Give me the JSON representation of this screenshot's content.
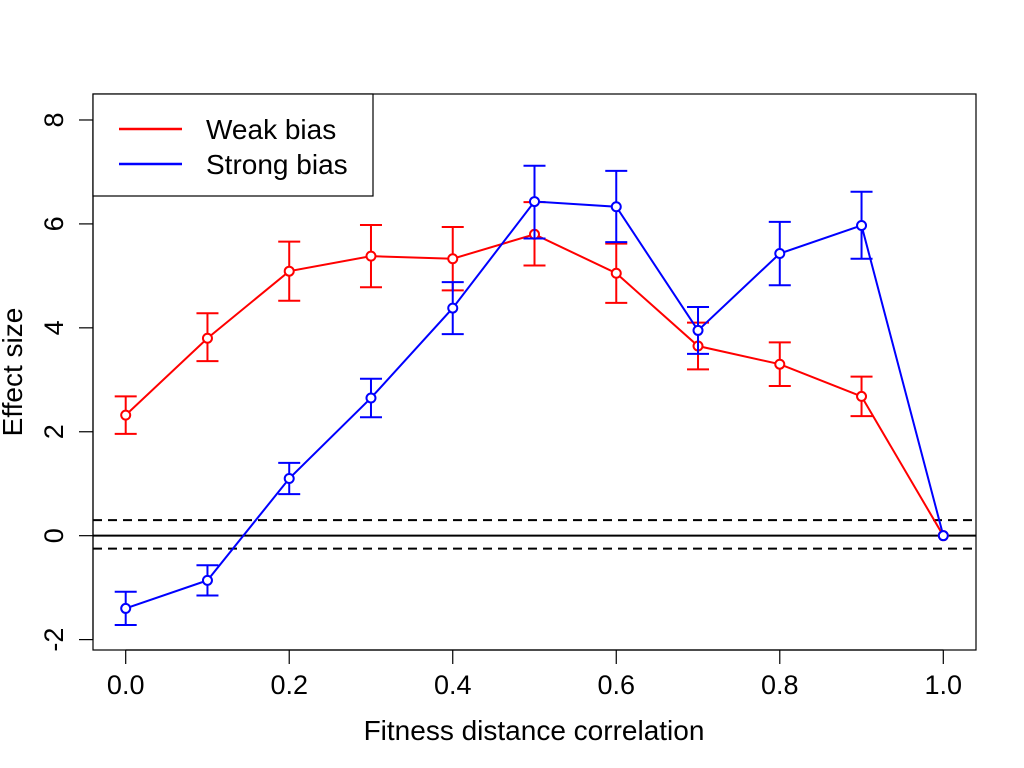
{
  "chart_data": {
    "type": "line",
    "title": "",
    "xlabel": "Fitness distance correlation",
    "ylabel": "Effect size",
    "xlim": [
      -0.04,
      1.04
    ],
    "ylim": [
      -2.2,
      8.5
    ],
    "x": [
      0.0,
      0.1,
      0.2,
      0.3,
      0.4,
      0.5,
      0.6,
      0.7,
      0.8,
      0.9,
      1.0
    ],
    "x_ticks": [
      0.0,
      0.2,
      0.4,
      0.6,
      0.8,
      1.0
    ],
    "x_tick_labels": [
      "0.0",
      "0.2",
      "0.4",
      "0.6",
      "0.8",
      "1.0"
    ],
    "y_ticks": [
      -2,
      0,
      2,
      4,
      6,
      8
    ],
    "y_tick_labels": [
      "-2",
      "0",
      "2",
      "4",
      "6",
      "8"
    ],
    "reference_lines": [
      {
        "y": 0,
        "style": "solid"
      },
      {
        "y": 0.3,
        "style": "dashed"
      },
      {
        "y": -0.25,
        "style": "dashed"
      }
    ],
    "legend_position": "top-left",
    "series": [
      {
        "name": "Weak bias",
        "color": "#ff0000",
        "values": [
          2.32,
          3.8,
          5.09,
          5.38,
          5.33,
          5.8,
          5.05,
          3.65,
          3.3,
          2.68,
          0.0
        ],
        "lower": [
          1.96,
          3.36,
          4.52,
          4.78,
          4.72,
          5.2,
          4.48,
          3.2,
          2.88,
          2.3,
          0.0
        ],
        "upper": [
          2.68,
          4.28,
          5.66,
          5.98,
          5.94,
          6.42,
          5.62,
          4.1,
          3.72,
          3.06,
          0.0
        ]
      },
      {
        "name": "Strong bias",
        "color": "#0000ff",
        "values": [
          -1.4,
          -0.86,
          1.1,
          2.65,
          4.38,
          6.43,
          6.33,
          3.95,
          5.43,
          5.97,
          0.0
        ],
        "lower": [
          -1.72,
          -1.15,
          0.8,
          2.28,
          3.88,
          5.72,
          5.65,
          3.5,
          4.82,
          5.33,
          0.0
        ],
        "upper": [
          -1.08,
          -0.57,
          1.4,
          3.02,
          4.88,
          7.12,
          7.02,
          4.4,
          6.04,
          6.62,
          0.0
        ]
      }
    ]
  }
}
